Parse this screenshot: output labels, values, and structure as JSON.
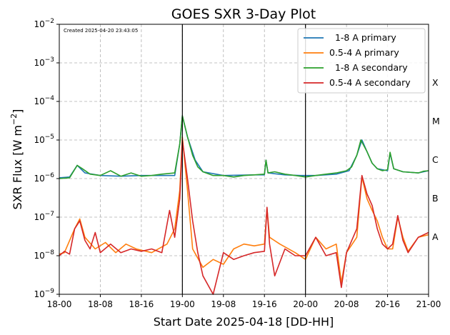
{
  "chart_data": {
    "type": "line",
    "title": "GOES SXR 3-Day Plot",
    "created_note": "Created 2025-04-20 23:43:05",
    "xlabel": "Start Date 2025-04-18 [DD-HH]",
    "ylabel_base": "SXR Flux [W m",
    "ylabel_exp": "−2",
    "ylabel_tail": "]",
    "x_unit": "hours since 18-00",
    "xlim": [
      0,
      72
    ],
    "x_ticks": [
      {
        "t": 0,
        "label": "18-00"
      },
      {
        "t": 8,
        "label": "18-08"
      },
      {
        "t": 16,
        "label": "18-16"
      },
      {
        "t": 24,
        "label": "19-00"
      },
      {
        "t": 32,
        "label": "19-08"
      },
      {
        "t": 40,
        "label": "19-16"
      },
      {
        "t": 48,
        "label": "20-00"
      },
      {
        "t": 56,
        "label": "20-08"
      },
      {
        "t": 64,
        "label": "20-16"
      },
      {
        "t": 72,
        "label": "21-00"
      }
    ],
    "yscale": "log",
    "ylim": [
      1e-09,
      0.01
    ],
    "y_ticks": [
      {
        "v": 1e-09,
        "exp": "−9"
      },
      {
        "v": 1e-08,
        "exp": "−8"
      },
      {
        "v": 1e-07,
        "exp": "−7"
      },
      {
        "v": 1e-06,
        "exp": "−6"
      },
      {
        "v": 1e-05,
        "exp": "−5"
      },
      {
        "v": 0.0001,
        "exp": "−4"
      },
      {
        "v": 0.001,
        "exp": "−3"
      },
      {
        "v": 0.01,
        "exp": "−2"
      }
    ],
    "day_lines": [
      24,
      48
    ],
    "flare_classes": [
      {
        "label": "A",
        "v": 3e-08
      },
      {
        "label": "B",
        "v": 3e-07
      },
      {
        "label": "C",
        "v": 3e-06
      },
      {
        "label": "M",
        "v": 3e-05
      },
      {
        "label": "X",
        "v": 0.0003
      }
    ],
    "grid": true,
    "legend": "top-right",
    "series": [
      {
        "name": "  1-8 A primary",
        "color": "#1f77b4",
        "points": [
          [
            0,
            1.05e-06
          ],
          [
            2,
            1.1e-06
          ],
          [
            3.5,
            2.2e-06
          ],
          [
            5,
            1.4e-06
          ],
          [
            8,
            1.2e-06
          ],
          [
            12,
            1.15e-06
          ],
          [
            16,
            1.2e-06
          ],
          [
            22.5,
            1.2e-06
          ],
          [
            23.5,
            8e-06
          ],
          [
            24,
            4.2e-05
          ],
          [
            25,
            1.2e-05
          ],
          [
            26.5,
            3e-06
          ],
          [
            28,
            1.5e-06
          ],
          [
            32,
            1.2e-06
          ],
          [
            38,
            1.25e-06
          ],
          [
            40,
            1.25e-06
          ],
          [
            40.3,
            3e-06
          ],
          [
            40.7,
            1.4e-06
          ],
          [
            44,
            1.25e-06
          ],
          [
            47,
            1.2e-06
          ],
          [
            50,
            1.2e-06
          ],
          [
            54,
            1.3e-06
          ],
          [
            56.5,
            1.6e-06
          ],
          [
            58,
            4e-06
          ],
          [
            59,
            1e-05
          ],
          [
            60,
            5e-06
          ],
          [
            61,
            2.5e-06
          ],
          [
            62,
            1.8e-06
          ],
          [
            64,
            1.6e-06
          ],
          [
            64.5,
            4.5e-06
          ],
          [
            65.2,
            1.8e-06
          ],
          [
            67,
            1.5e-06
          ],
          [
            70,
            1.4e-06
          ],
          [
            72,
            1.6e-06
          ]
        ]
      },
      {
        "name": "0.5-4 A primary",
        "color": "#ff7f0e",
        "points": [
          [
            0,
            1.1e-08
          ],
          [
            1,
            1.2e-08
          ],
          [
            3,
            5e-08
          ],
          [
            4,
            9e-08
          ],
          [
            5,
            3e-08
          ],
          [
            7,
            1.5e-08
          ],
          [
            9,
            2.2e-08
          ],
          [
            11,
            1.2e-08
          ],
          [
            13,
            2e-08
          ],
          [
            15,
            1.5e-08
          ],
          [
            18,
            1.2e-08
          ],
          [
            21,
            2e-08
          ],
          [
            22.5,
            5e-08
          ],
          [
            23.5,
            5e-07
          ],
          [
            24,
            1.2e-05
          ],
          [
            25,
            5e-07
          ],
          [
            26,
            1.5e-08
          ],
          [
            28,
            5e-09
          ],
          [
            30,
            8e-09
          ],
          [
            32,
            6e-09
          ],
          [
            34,
            1.5e-08
          ],
          [
            36,
            2e-08
          ],
          [
            38,
            1.8e-08
          ],
          [
            40,
            2e-08
          ],
          [
            40.5,
            1.7e-07
          ],
          [
            41,
            3e-08
          ],
          [
            43,
            2e-08
          ],
          [
            46,
            1.2e-08
          ],
          [
            48,
            8e-09
          ],
          [
            50,
            3e-08
          ],
          [
            52,
            1.5e-08
          ],
          [
            54,
            2e-08
          ],
          [
            55,
            2e-09
          ],
          [
            56,
            1.2e-08
          ],
          [
            58,
            3e-08
          ],
          [
            59,
            1.1e-06
          ],
          [
            60,
            3e-07
          ],
          [
            61,
            1.5e-07
          ],
          [
            62,
            8e-08
          ],
          [
            63,
            3e-08
          ],
          [
            64,
            1.5e-08
          ],
          [
            65,
            1.5e-08
          ],
          [
            66,
            1e-07
          ],
          [
            67,
            3e-08
          ],
          [
            68,
            1.3e-08
          ],
          [
            70,
            3e-08
          ],
          [
            72,
            3.5e-08
          ]
        ]
      },
      {
        "name": "  1-8 A secondary",
        "color": "#2ca02c",
        "points": [
          [
            0,
            1e-06
          ],
          [
            2,
            1.05e-06
          ],
          [
            3.5,
            2.2e-06
          ],
          [
            4.5,
            1.8e-06
          ],
          [
            6,
            1.3e-06
          ],
          [
            8,
            1.2e-06
          ],
          [
            10,
            1.6e-06
          ],
          [
            12,
            1.15e-06
          ],
          [
            14,
            1.4e-06
          ],
          [
            16,
            1.15e-06
          ],
          [
            18,
            1.2e-06
          ],
          [
            20,
            1.3e-06
          ],
          [
            22.5,
            1.4e-06
          ],
          [
            23.5,
            8e-06
          ],
          [
            24,
            4.3e-05
          ],
          [
            25,
            1.2e-05
          ],
          [
            26,
            4e-06
          ],
          [
            27,
            2e-06
          ],
          [
            28,
            1.5e-06
          ],
          [
            30,
            1.2e-06
          ],
          [
            32,
            1.2e-06
          ],
          [
            34,
            1.1e-06
          ],
          [
            36,
            1.2e-06
          ],
          [
            38,
            1.25e-06
          ],
          [
            40,
            1.3e-06
          ],
          [
            40.3,
            3e-06
          ],
          [
            40.7,
            1.4e-06
          ],
          [
            42,
            1.5e-06
          ],
          [
            44,
            1.3e-06
          ],
          [
            46,
            1.2e-06
          ],
          [
            48,
            1.1e-06
          ],
          [
            50,
            1.2e-06
          ],
          [
            52,
            1.3e-06
          ],
          [
            54,
            1.4e-06
          ],
          [
            56,
            1.6e-06
          ],
          [
            57,
            2e-06
          ],
          [
            58,
            4e-06
          ],
          [
            58.8,
            1e-05
          ],
          [
            60,
            5e-06
          ],
          [
            61,
            2.5e-06
          ],
          [
            62,
            1.8e-06
          ],
          [
            63,
            1.6e-06
          ],
          [
            64,
            1.7e-06
          ],
          [
            64.5,
            4.8e-06
          ],
          [
            65.2,
            1.8e-06
          ],
          [
            67,
            1.5e-06
          ],
          [
            70,
            1.4e-06
          ],
          [
            71,
            1.55e-06
          ],
          [
            72,
            1.6e-06
          ]
        ]
      },
      {
        "name": "0.5-4 A secondary",
        "color": "#d62728",
        "points": [
          [
            0,
            1e-08
          ],
          [
            1,
            1.3e-08
          ],
          [
            2,
            1.1e-08
          ],
          [
            3,
            5e-08
          ],
          [
            4,
            8e-08
          ],
          [
            5,
            2.5e-08
          ],
          [
            6,
            1.5e-08
          ],
          [
            7,
            4e-08
          ],
          [
            8,
            1.2e-08
          ],
          [
            10,
            2e-08
          ],
          [
            12,
            1.2e-08
          ],
          [
            14,
            1.5e-08
          ],
          [
            16,
            1.3e-08
          ],
          [
            18,
            1.5e-08
          ],
          [
            20,
            1.2e-08
          ],
          [
            21.5,
            1.5e-07
          ],
          [
            22.5,
            3e-08
          ],
          [
            23.5,
            3e-07
          ],
          [
            24,
            1e-05
          ],
          [
            25,
            1e-06
          ],
          [
            26,
            8e-08
          ],
          [
            27,
            1.2e-08
          ],
          [
            28,
            3e-09
          ],
          [
            30,
            1e-09
          ],
          [
            32,
            1.2e-08
          ],
          [
            34,
            8e-09
          ],
          [
            36,
            1e-08
          ],
          [
            38,
            1.2e-08
          ],
          [
            40,
            1.3e-08
          ],
          [
            40.5,
            1.8e-07
          ],
          [
            41,
            2e-08
          ],
          [
            42,
            3e-09
          ],
          [
            44,
            1.5e-08
          ],
          [
            46,
            1e-08
          ],
          [
            48,
            1e-08
          ],
          [
            50,
            3e-08
          ],
          [
            52,
            1e-08
          ],
          [
            54,
            1.2e-08
          ],
          [
            55,
            1.5e-09
          ],
          [
            56,
            1.2e-08
          ],
          [
            58,
            5e-08
          ],
          [
            59,
            1.2e-06
          ],
          [
            60,
            4e-07
          ],
          [
            61,
            2e-07
          ],
          [
            62,
            5e-08
          ],
          [
            63,
            2e-08
          ],
          [
            64,
            1.5e-08
          ],
          [
            65,
            2e-08
          ],
          [
            66,
            1.1e-07
          ],
          [
            67,
            2.5e-08
          ],
          [
            68,
            1.2e-08
          ],
          [
            70,
            3e-08
          ],
          [
            72,
            4e-08
          ]
        ]
      }
    ]
  }
}
